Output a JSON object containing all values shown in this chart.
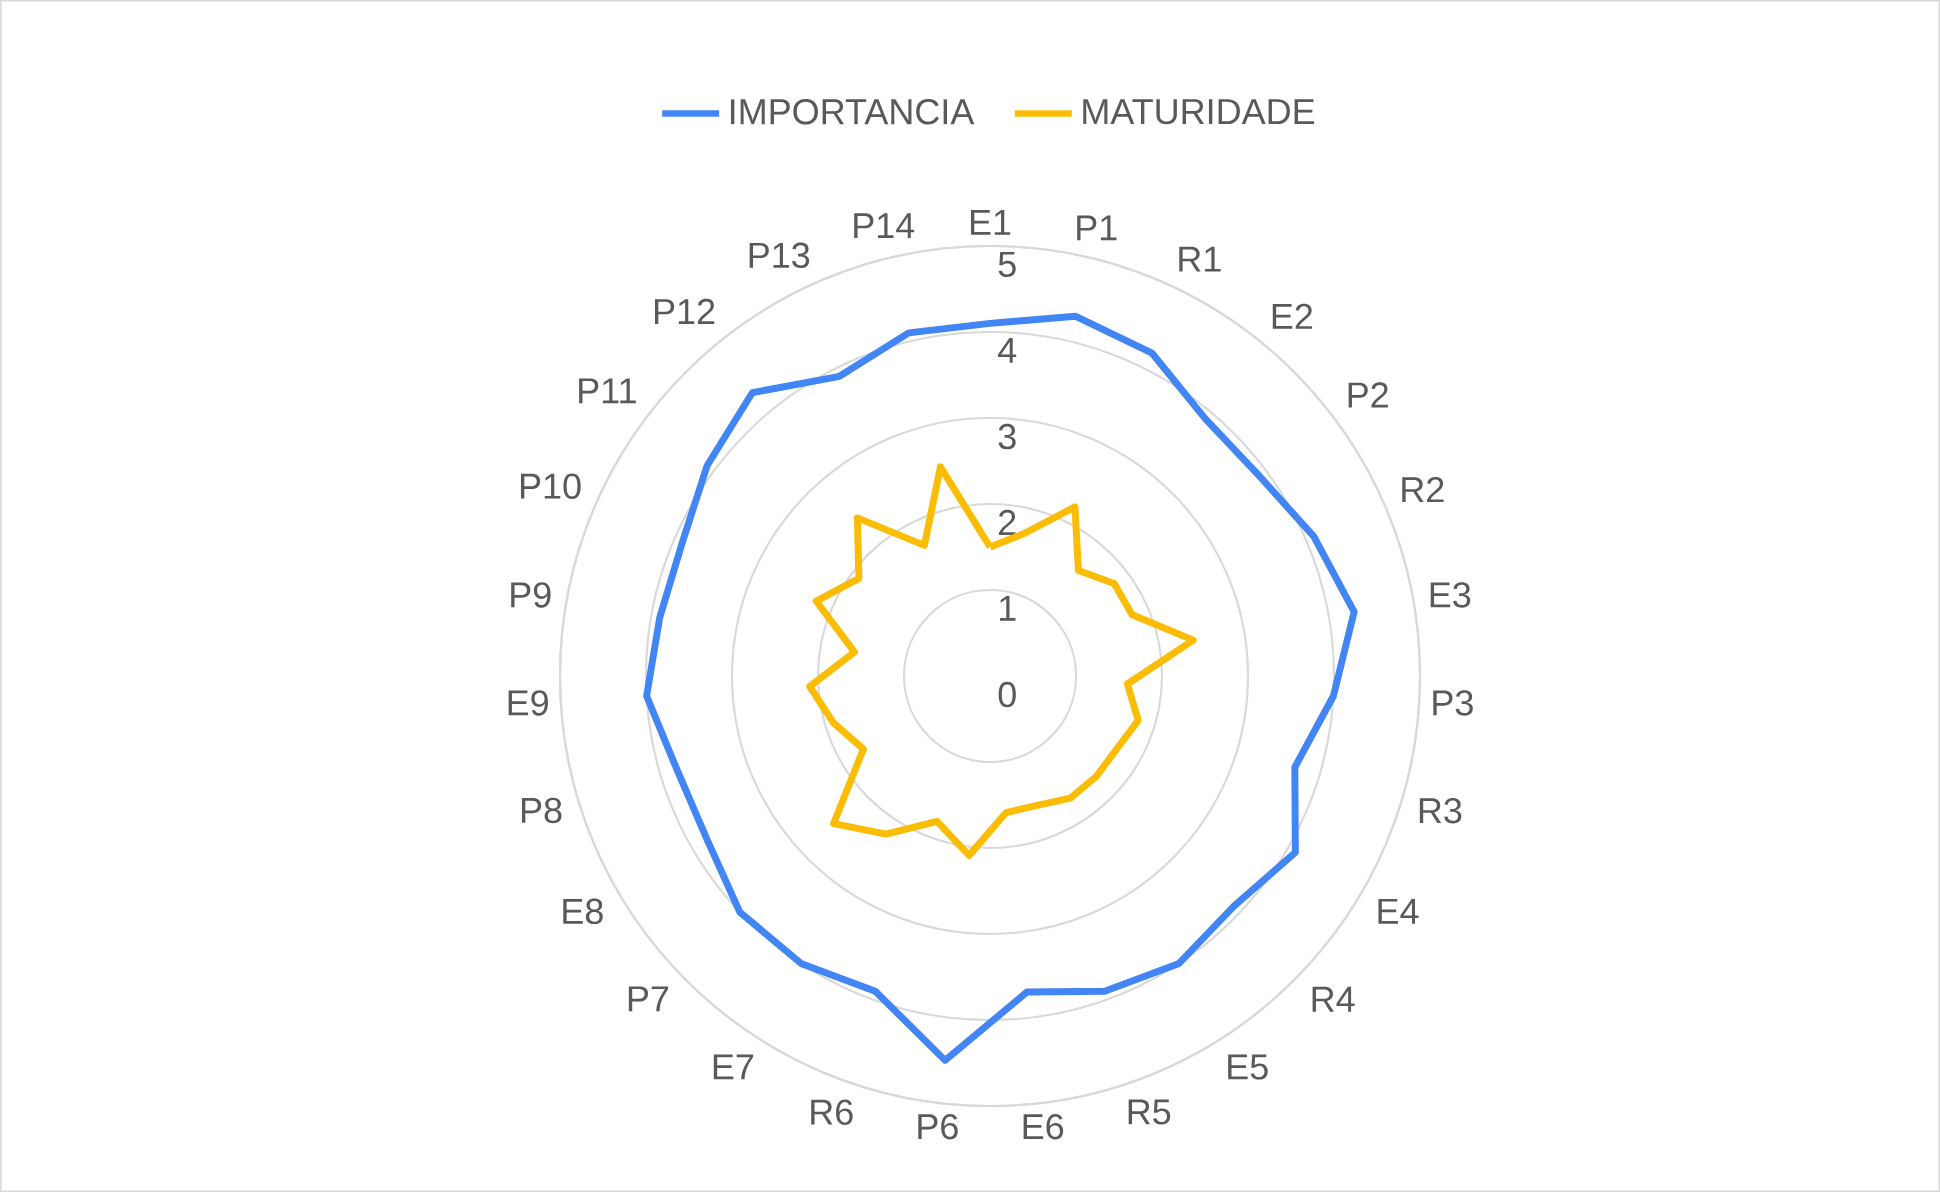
{
  "chart_data": {
    "type": "radar",
    "categories": [
      "E1",
      "P1",
      "R1",
      "E2",
      "P2",
      "R2",
      "E3",
      "P3",
      "R3",
      "E4",
      "R4",
      "E5",
      "R5",
      "E6",
      "P6",
      "R6",
      "E7",
      "P7",
      "E8",
      "P8",
      "E9",
      "P9",
      "P10",
      "P11",
      "P12",
      "P13",
      "P14"
    ],
    "series": [
      {
        "name": "IMPORTANCIA",
        "color": "#4285f4",
        "values": [
          4.1,
          4.3,
          4.2,
          3.9,
          3.9,
          4.1,
          4.3,
          4.0,
          3.7,
          4.1,
          3.9,
          4.0,
          3.9,
          3.7,
          4.5,
          3.9,
          4.0,
          4.0,
          3.8,
          3.8,
          4.0,
          3.9,
          3.9,
          4.1,
          4.3,
          3.9,
          4.1
        ]
      },
      {
        "name": "MATURIDADE",
        "color": "#fbbc04",
        "values": [
          1.5,
          1.7,
          2.2,
          1.6,
          1.8,
          1.8,
          2.4,
          1.6,
          1.8,
          1.7,
          1.7,
          1.7,
          1.6,
          1.6,
          2.1,
          1.8,
          2.2,
          2.5,
          1.7,
          1.9,
          2.1,
          1.6,
          2.2,
          1.9,
          2.4,
          1.7,
          2.5
        ]
      }
    ],
    "ylim": [
      0,
      5
    ],
    "yticks": [
      0,
      1,
      2,
      3,
      4,
      5
    ],
    "grid": true,
    "legend": "top"
  }
}
